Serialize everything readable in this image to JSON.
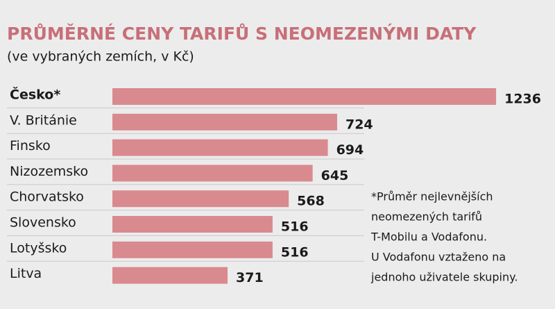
{
  "chart_data": {
    "type": "bar",
    "orientation": "horizontal",
    "title": "PRŮMĚRNÉ CENY TARIFŮ S NEOMEZENÝMI DATY",
    "subtitle": "(ve vybraných zemích, v Kč)",
    "categories": [
      "Česko*",
      "V. Británie",
      "Finsko",
      "Nizozemsko",
      "Chorvatsko",
      "Slovensko",
      "Lotyšsko",
      "Litva"
    ],
    "values": [
      1236,
      724,
      694,
      645,
      568,
      516,
      516,
      371
    ],
    "color": "#d98a8f",
    "note": [
      "*Průměr nejlevnějších",
      "neomezených tarifů",
      "T-Mobilu a Vodafonu.",
      "U Vodafonu vztaženo na",
      "jednoho uživatele skupiny."
    ]
  }
}
